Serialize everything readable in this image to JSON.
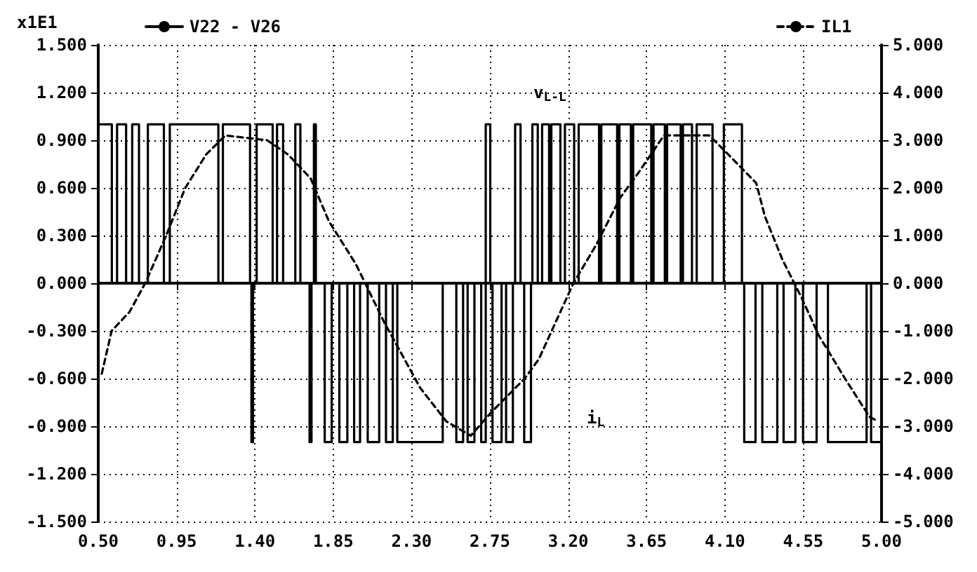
{
  "chart_data": {
    "type": "line",
    "xlim": [
      0.5,
      5.0
    ],
    "xticks": [
      {
        "value": 0.5,
        "label": "0.50"
      },
      {
        "value": 0.95,
        "label": "0.95"
      },
      {
        "value": 1.4,
        "label": "1.40"
      },
      {
        "value": 1.85,
        "label": "1.85"
      },
      {
        "value": 2.3,
        "label": "2.30"
      },
      {
        "value": 2.75,
        "label": "2.75"
      },
      {
        "value": 3.2,
        "label": "3.20"
      },
      {
        "value": 3.65,
        "label": "3.65"
      },
      {
        "value": 4.1,
        "label": "4.10"
      },
      {
        "value": 4.55,
        "label": "4.55"
      },
      {
        "value": 5.0,
        "label": "5.00"
      }
    ],
    "ylim": [
      -1.5,
      1.5
    ],
    "yticks": [
      {
        "value": -1.5,
        "label": "-1.500"
      },
      {
        "value": -1.2,
        "label": "-1.200"
      },
      {
        "value": -0.9,
        "label": "-0.900"
      },
      {
        "value": -0.6,
        "label": "-0.600"
      },
      {
        "value": -0.3,
        "label": "-0.300"
      },
      {
        "value": 0,
        "label": "0.000"
      },
      {
        "value": 0.3,
        "label": "0.300"
      },
      {
        "value": 0.6,
        "label": "0.600"
      },
      {
        "value": 0.9,
        "label": "0.900"
      },
      {
        "value": 1.2,
        "label": "1.200"
      },
      {
        "value": 1.5,
        "label": "1.500"
      }
    ],
    "y2lim": [
      -5,
      5
    ],
    "y2ticks": [
      {
        "value": -5,
        "label": "-5.000"
      },
      {
        "value": -4,
        "label": "-4.000"
      },
      {
        "value": -3,
        "label": "-3.000"
      },
      {
        "value": -2,
        "label": "-2.000"
      },
      {
        "value": -1,
        "label": "-1.000"
      },
      {
        "value": 0,
        "label": "0.000"
      },
      {
        "value": 1,
        "label": "1.000"
      },
      {
        "value": 2,
        "label": "2.000"
      },
      {
        "value": 3,
        "label": "3.000"
      },
      {
        "value": 4,
        "label": "4.000"
      },
      {
        "value": 5,
        "label": "5.000"
      }
    ],
    "grid": true,
    "legend": "top",
    "marker": "none",
    "annotations": [
      "x1E1",
      "v$_{L-L}$",
      "i$_{L}$"
    ],
    "series": [
      {
        "name": "V22 - V26",
        "type": "step",
        "color": "#000000",
        "line_style": "solid",
        "x": [
          0.5,
          0.578,
          0.608,
          0.66,
          0.695,
          0.734,
          0.785,
          0.877,
          0.911,
          1.19,
          1.216,
          1.372,
          1.38,
          1.389,
          1.41,
          1.502,
          1.527,
          1.562,
          1.632,
          1.661,
          1.714,
          1.725,
          1.739,
          1.75,
          1.801,
          1.841,
          1.885,
          1.931,
          1.97,
          2.004,
          2.048,
          2.114,
          2.153,
          2.192,
          2.218,
          2.479,
          2.557,
          2.596,
          2.622,
          2.661,
          2.7,
          2.726,
          2.752,
          2.765,
          2.817,
          2.843,
          2.882,
          2.895,
          2.926,
          2.947,
          2.986,
          2.994,
          3.025,
          3.05,
          3.09,
          3.103,
          3.155,
          3.181,
          3.234,
          3.26,
          3.377,
          3.39,
          3.481,
          3.494,
          3.56,
          3.573,
          3.677,
          3.69,
          3.755,
          3.768,
          3.846,
          3.859,
          3.911,
          3.938,
          4.029,
          4.094,
          4.198,
          4.211,
          4.276,
          4.315,
          4.401,
          4.437,
          4.505,
          4.549,
          4.627,
          4.692,
          4.914,
          4.94,
          5.0
        ],
        "values": [
          1,
          0,
          1,
          0,
          1,
          0,
          1,
          0,
          1,
          0,
          1,
          0,
          -1,
          0,
          1,
          0,
          1,
          0,
          1,
          0,
          -1,
          0,
          1,
          0,
          -1,
          0,
          -1,
          0,
          -1,
          0,
          -1,
          0,
          -1,
          0,
          -1,
          0,
          -1,
          0,
          -1,
          0,
          -1,
          1,
          0,
          -1,
          0,
          -1,
          0,
          1,
          0,
          -1,
          0,
          1,
          0,
          1,
          0,
          1,
          0,
          1,
          0,
          1,
          0,
          1,
          0,
          1,
          0,
          1,
          0,
          1,
          0,
          1,
          0,
          1,
          0,
          1,
          0,
          1,
          0,
          -1,
          0,
          -1,
          0,
          -1,
          0,
          -1,
          0,
          -1,
          0,
          -1,
          -1
        ]
      },
      {
        "name": "IL1",
        "type": "line",
        "axis": "y2",
        "color": "#000000",
        "line_style": "dashed",
        "x": [
          0.52,
          0.577,
          0.68,
          0.77,
          0.89,
          1.0,
          1.12,
          1.23,
          1.47,
          1.59,
          1.72,
          1.825,
          1.98,
          2.14,
          2.35,
          2.5,
          2.64,
          2.76,
          2.95,
          3.03,
          3.13,
          3.23,
          3.36,
          3.5,
          3.6,
          3.75,
          4.01,
          4.12,
          4.28,
          4.33,
          4.43,
          4.54,
          4.64,
          4.79,
          4.93,
          4.98
        ],
        "values": [
          -1.9,
          -1.0,
          -0.6,
          0.0,
          1.0,
          2.0,
          2.7,
          3.1,
          3.0,
          2.7,
          2.2,
          1.3,
          0.4,
          -0.8,
          -2.2,
          -2.9,
          -3.2,
          -2.7,
          -2.0,
          -1.6,
          -0.8,
          0.0,
          0.8,
          1.8,
          2.3,
          3.1,
          3.1,
          2.7,
          2.1,
          1.4,
          0.5,
          -0.3,
          -1.1,
          -2.0,
          -2.8,
          -2.9
        ]
      }
    ]
  }
}
